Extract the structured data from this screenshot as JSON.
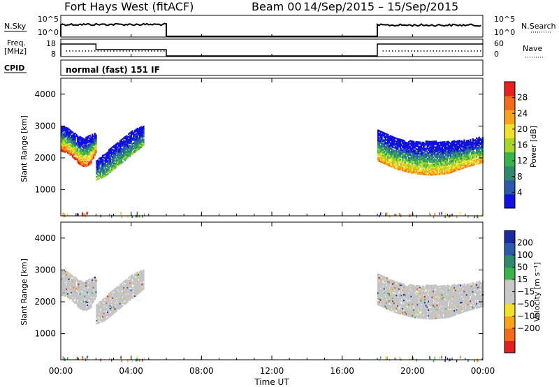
{
  "header": {
    "radar": "Fort Hays West (fitACF)",
    "beam": "Beam 00",
    "dates": "14/Sep/2015 – 15/Sep/2015"
  },
  "status_panels": {
    "nsky_label": "N.Sky",
    "nsearch_label": "N.Search",
    "noise_ticks": [
      "10^5",
      "10^0"
    ],
    "freq_label_1": "Freq.",
    "freq_label_2": "[MHz]",
    "freq_ticks": [
      "18",
      "8"
    ],
    "nave_label": "Nave",
    "nave_ticks": [
      "60",
      "0"
    ],
    "cpid_label": "CPID",
    "cpid_value": "normal (fast) 151 IF"
  },
  "chart_data": [
    {
      "type": "heatmap",
      "title": "",
      "xlabel": "Time UT",
      "ylabel": "Slant Range [km]",
      "x_ticks": [
        "00:00",
        "04:00",
        "08:00",
        "12:00",
        "16:00",
        "20:00",
        "00:00"
      ],
      "xlim_hours": [
        0,
        24
      ],
      "y_ticks": [
        1000,
        2000,
        3000,
        4000
      ],
      "ylim": [
        180,
        4500
      ],
      "colorbar": {
        "label": "Power [dB]",
        "ticks": [
          "28",
          "24",
          "20",
          "16",
          "12",
          "8",
          "4"
        ],
        "range": [
          0,
          32
        ]
      },
      "echo_regions": [
        {
          "start_hour": 0.0,
          "end_hour": 2.0,
          "lower_km": [
            2200,
            2150,
            2000,
            1800,
            1700,
            1800,
            2200
          ],
          "upper_km": [
            3000,
            2950,
            2800,
            2650,
            2600,
            2700,
            2800
          ],
          "peak_power_db": 30
        },
        {
          "start_hour": 2.0,
          "end_hour": 4.7,
          "lower_km": [
            1300,
            1400,
            1600,
            1800,
            2000,
            2200,
            2400
          ],
          "upper_km": [
            1900,
            2100,
            2350,
            2550,
            2750,
            2900,
            3000
          ],
          "peak_power_db": 14
        },
        {
          "start_hour": 18.0,
          "end_hour": 24.0,
          "lower_km": [
            1900,
            1650,
            1500,
            1450,
            1500,
            1700,
            1850
          ],
          "upper_km": [
            2850,
            2600,
            2500,
            2500,
            2500,
            2550,
            2650
          ],
          "peak_power_db": 24
        }
      ],
      "ground_scatter_km": 250
    },
    {
      "type": "heatmap",
      "title": "",
      "xlabel": "Time UT",
      "ylabel": "Slant Range [km]",
      "x_ticks": [
        "00:00",
        "04:00",
        "08:00",
        "12:00",
        "16:00",
        "20:00",
        "00:00"
      ],
      "xlim_hours": [
        0,
        24
      ],
      "y_ticks": [
        1000,
        2000,
        3000,
        4000
      ],
      "ylim": [
        180,
        4500
      ],
      "colorbar": {
        "label": "Velocity [m s⁻¹]",
        "ticks": [
          "200",
          "100",
          "50",
          "15",
          "−15",
          "−50",
          "−100",
          "−200"
        ],
        "range": [
          -250,
          250
        ]
      },
      "dominant_category": "ground scatter (gray)"
    }
  ],
  "colors": {
    "power_scale": [
      "#1010e0",
      "#2a5aa8",
      "#2e8a6e",
      "#39b44a",
      "#a8d52a",
      "#f2e12a",
      "#f7a31b",
      "#f06b1b",
      "#e42020"
    ],
    "velocity_scale": [
      "#e02020",
      "#f06b1b",
      "#f7a31b",
      "#f2e12a",
      "#c8c8c8",
      "#c8c8c8",
      "#39b44a",
      "#2e8a6e",
      "#2a5aa8",
      "#1a2aa0"
    ],
    "ground_scatter": "#c4c4c4"
  }
}
